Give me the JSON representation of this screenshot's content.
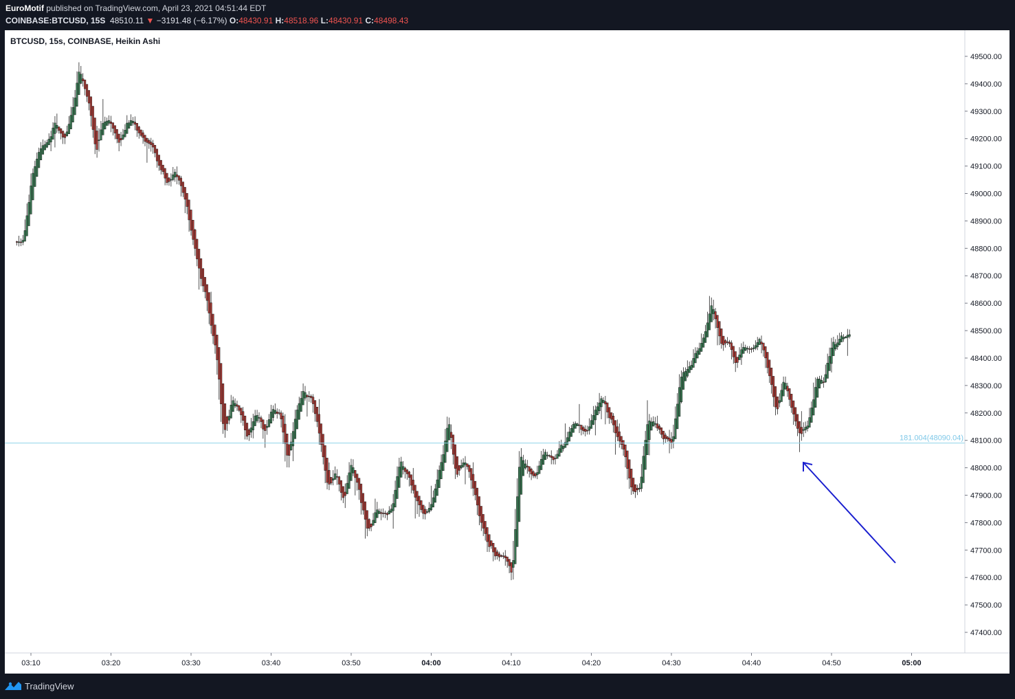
{
  "header": {
    "author": "EuroMotif",
    "published": "published on TradingView.com, April 23, 2021 04:51:44 EDT",
    "symbol": "COINBASE:BTCUSD, 15S",
    "last": "48510.11",
    "change_arrow": "▼",
    "change": "−3191.48 (−6.17%)",
    "o_label": "O:",
    "o_value": "48430.91",
    "h_label": "H:",
    "h_value": "48518.96",
    "l_label": "L:",
    "l_value": "48430.91",
    "c_label": "C:",
    "c_value": "48498.43"
  },
  "chart_label": "BTCUSD, 15s, COINBASE, Heikin Ashi",
  "footer": {
    "brand": "TradingView",
    "logo_icon": "tradingview-logo-icon"
  },
  "colors": {
    "up": "#26a69a",
    "up_body": "#3a7a54",
    "down": "#a83a35",
    "wick": "#222222",
    "hline": "#8fd3ea",
    "arrow": "#1a1fcf",
    "red_text": "#ef5350"
  },
  "chart_data": {
    "type": "candlestick",
    "chart_style": "Heikin Ashi",
    "interval": "15s",
    "x_ticks": [
      "03:10",
      "03:20",
      "03:30",
      "03:40",
      "03:50",
      "04:00",
      "04:10",
      "04:20",
      "04:30",
      "04:40",
      "04:50",
      "05:00"
    ],
    "y_ticks": [
      "49500.00",
      "49400.00",
      "49300.00",
      "49200.00",
      "49100.00",
      "49000.00",
      "48900.00",
      "48800.00",
      "48700.00",
      "48600.00",
      "48500.00",
      "48400.00",
      "48300.00",
      "48200.00",
      "48100.00",
      "48000.00",
      "47900.00",
      "47800.00",
      "47700.00",
      "47600.00",
      "47500.00",
      "47400.00"
    ],
    "ylim": [
      47380,
      49540
    ],
    "price_path": [
      [
        "03:09",
        48820
      ],
      [
        "03:10",
        49050
      ],
      [
        "03:11",
        49150
      ],
      [
        "03:12",
        49200
      ],
      [
        "03:13",
        49250
      ],
      [
        "03:14",
        49200
      ],
      [
        "03:15",
        49280
      ],
      [
        "03:16",
        49460
      ],
      [
        "03:17",
        49350
      ],
      [
        "03:18",
        49150
      ],
      [
        "03:19",
        49260
      ],
      [
        "03:20",
        49250
      ],
      [
        "03:21",
        49180
      ],
      [
        "03:22",
        49270
      ],
      [
        "03:23",
        49250
      ],
      [
        "03:24",
        49210
      ],
      [
        "03:25",
        49190
      ],
      [
        "03:26",
        49080
      ],
      [
        "03:27",
        49040
      ],
      [
        "03:28",
        49080
      ],
      [
        "03:29",
        48990
      ],
      [
        "03:30",
        48850
      ],
      [
        "03:31",
        48700
      ],
      [
        "03:32",
        48580
      ],
      [
        "03:33",
        48420
      ],
      [
        "03:34",
        48120
      ],
      [
        "03:35",
        48250
      ],
      [
        "03:36",
        48200
      ],
      [
        "03:37",
        48120
      ],
      [
        "03:38",
        48180
      ],
      [
        "03:39",
        48140
      ],
      [
        "03:40",
        48210
      ],
      [
        "03:41",
        48180
      ],
      [
        "03:42",
        48030
      ],
      [
        "03:43",
        48200
      ],
      [
        "03:44",
        48300
      ],
      [
        "03:45",
        48240
      ],
      [
        "03:46",
        48100
      ],
      [
        "03:47",
        47930
      ],
      [
        "03:48",
        47990
      ],
      [
        "03:49",
        47900
      ],
      [
        "03:50",
        48020
      ],
      [
        "03:51",
        47900
      ],
      [
        "03:52",
        47760
      ],
      [
        "03:53",
        47840
      ],
      [
        "03:54",
        47830
      ],
      [
        "03:55",
        47840
      ],
      [
        "03:56",
        48030
      ],
      [
        "03:57",
        47990
      ],
      [
        "03:58",
        47880
      ],
      [
        "03:59",
        47830
      ],
      [
        "04:00",
        47860
      ],
      [
        "04:01",
        48000
      ],
      [
        "04:02",
        48170
      ],
      [
        "04:03",
        47980
      ],
      [
        "04:04",
        48020
      ],
      [
        "04:05",
        47930
      ],
      [
        "04:06",
        47800
      ],
      [
        "04:07",
        47720
      ],
      [
        "04:08",
        47680
      ],
      [
        "04:09",
        47660
      ],
      [
        "04:10",
        47620
      ],
      [
        "04:11",
        48050
      ],
      [
        "04:12",
        47980
      ],
      [
        "04:13",
        47950
      ],
      [
        "04:14",
        48080
      ],
      [
        "04:15",
        48040
      ],
      [
        "04:16",
        48070
      ],
      [
        "04:17",
        48130
      ],
      [
        "04:18",
        48170
      ],
      [
        "04:19",
        48120
      ],
      [
        "04:20",
        48180
      ],
      [
        "04:21",
        48250
      ],
      [
        "04:22",
        48200
      ],
      [
        "04:23",
        48110
      ],
      [
        "04:24",
        48050
      ],
      [
        "04:25",
        47900
      ],
      [
        "04:26",
        47950
      ],
      [
        "04:27",
        48200
      ],
      [
        "04:28",
        48140
      ],
      [
        "04:29",
        48080
      ],
      [
        "04:30",
        48080
      ],
      [
        "04:31",
        48320
      ],
      [
        "04:32",
        48370
      ],
      [
        "04:33",
        48420
      ],
      [
        "04:34",
        48480
      ],
      [
        "04:35",
        48580
      ],
      [
        "04:36",
        48470
      ],
      [
        "04:37",
        48450
      ],
      [
        "04:38",
        48390
      ],
      [
        "04:39",
        48450
      ],
      [
        "04:40",
        48460
      ],
      [
        "04:41",
        48480
      ],
      [
        "04:42",
        48350
      ],
      [
        "04:43",
        48220
      ],
      [
        "04:44",
        48320
      ],
      [
        "04:45",
        48210
      ],
      [
        "04:46",
        48130
      ],
      [
        "04:47",
        48180
      ],
      [
        "04:48",
        48310
      ],
      [
        "04:49",
        48330
      ],
      [
        "04:50",
        48440
      ],
      [
        "04:51",
        48480
      ]
    ],
    "candle_count": 417,
    "horizontal_line": {
      "price": 48090.04,
      "label": "181.004(48090.04)"
    },
    "annotation": {
      "type": "arrow",
      "pointing_to": "04:46 low near 48090.04"
    }
  }
}
